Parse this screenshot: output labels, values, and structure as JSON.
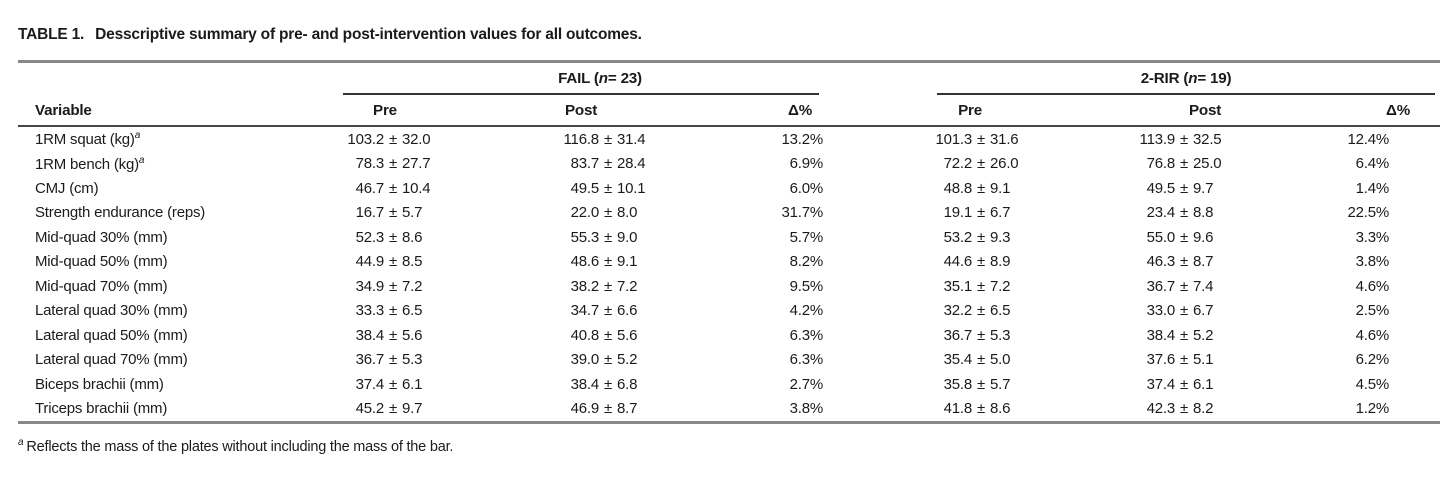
{
  "title": {
    "label": "TABLE 1.",
    "text": "Desscriptive summary of pre- and post-intervention values for all outcomes."
  },
  "table": {
    "groups": [
      {
        "label_prefix": "FAIL (",
        "n_symbol": "n",
        "label_suffix": " = 23)"
      },
      {
        "label_prefix": "2-RIR (",
        "n_symbol": "n",
        "label_suffix": " = 19)"
      }
    ],
    "col_headers": {
      "variable": "Variable",
      "pre": "Pre",
      "post": "Post",
      "delta": "Δ%"
    },
    "rows": [
      {
        "variable": "1RM squat (kg)",
        "sup": "a",
        "fail_pre": "103.2 ± 32.0",
        "fail_post": "116.8 ± 31.4",
        "fail_delta": "13.2%",
        "rir_pre": "101.3 ± 31.6",
        "rir_post": "113.9 ± 32.5",
        "rir_delta": "12.4%"
      },
      {
        "variable": "1RM bench (kg)",
        "sup": "a",
        "fail_pre": "78.3 ± 27.7",
        "fail_post": "83.7 ± 28.4",
        "fail_delta": "6.9%",
        "rir_pre": "72.2 ± 26.0",
        "rir_post": "76.8 ± 25.0",
        "rir_delta": "6.4%"
      },
      {
        "variable": "CMJ (cm)",
        "fail_pre": "46.7 ± 10.4",
        "fail_post": "49.5 ± 10.1",
        "fail_delta": "6.0%",
        "rir_pre": "48.8 ± 9.1",
        "rir_post": "49.5 ± 9.7",
        "rir_delta": "1.4%"
      },
      {
        "variable": "Strength endurance (reps)",
        "fail_pre": "16.7 ± 5.7",
        "fail_post": "22.0 ± 8.0",
        "fail_delta": "31.7%",
        "rir_pre": "19.1 ± 6.7",
        "rir_post": "23.4 ± 8.8",
        "rir_delta": "22.5%"
      },
      {
        "variable": "Mid-quad 30% (mm)",
        "fail_pre": "52.3 ± 8.6",
        "fail_post": "55.3 ± 9.0",
        "fail_delta": "5.7%",
        "rir_pre": "53.2 ± 9.3",
        "rir_post": "55.0 ± 9.6",
        "rir_delta": "3.3%"
      },
      {
        "variable": "Mid-quad 50% (mm)",
        "fail_pre": "44.9 ± 8.5",
        "fail_post": "48.6 ± 9.1",
        "fail_delta": "8.2%",
        "rir_pre": "44.6 ± 8.9",
        "rir_post": "46.3 ± 8.7",
        "rir_delta": "3.8%"
      },
      {
        "variable": "Mid-quad 70% (mm)",
        "fail_pre": "34.9 ± 7.2",
        "fail_post": "38.2 ± 7.2",
        "fail_delta": "9.5%",
        "rir_pre": "35.1 ± 7.2",
        "rir_post": "36.7 ± 7.4",
        "rir_delta": "4.6%"
      },
      {
        "variable": "Lateral quad 30% (mm)",
        "fail_pre": "33.3 ± 6.5",
        "fail_post": "34.7 ± 6.6",
        "fail_delta": "4.2%",
        "rir_pre": "32.2 ± 6.5",
        "rir_post": "33.0 ± 6.7",
        "rir_delta": "2.5%"
      },
      {
        "variable": "Lateral quad 50% (mm)",
        "fail_pre": "38.4 ± 5.6",
        "fail_post": "40.8 ± 5.6",
        "fail_delta": "6.3%",
        "rir_pre": "36.7 ± 5.3",
        "rir_post": "38.4 ± 5.2",
        "rir_delta": "4.6%"
      },
      {
        "variable": "Lateral quad 70% (mm)",
        "fail_pre": "36.7 ± 5.3",
        "fail_post": "39.0 ± 5.2",
        "fail_delta": "6.3%",
        "rir_pre": "35.4 ± 5.0",
        "rir_post": "37.6 ± 5.1",
        "rir_delta": "6.2%"
      },
      {
        "variable": "Biceps brachii (mm)",
        "fail_pre": "37.4 ± 6.1",
        "fail_post": "38.4 ± 6.8",
        "fail_delta": "2.7%",
        "rir_pre": "35.8 ± 5.7",
        "rir_post": "37.4 ± 6.1",
        "rir_delta": "4.5%"
      },
      {
        "variable": "Triceps brachii (mm)",
        "fail_pre": "45.2 ± 9.7",
        "fail_post": "46.9 ± 8.7",
        "fail_delta": "3.8%",
        "rir_pre": "41.8 ± 8.6",
        "rir_post": "42.3 ± 8.2",
        "rir_delta": "1.2%"
      }
    ]
  },
  "footnote": {
    "marker": "a",
    "text": "Reflects the mass of the plates without including the mass of the bar."
  },
  "colors": {
    "text": "#1b1b1b",
    "rule_outer": "#888888",
    "rule_header": "#464646",
    "rule_group": "#333333",
    "background": "#ffffff"
  }
}
